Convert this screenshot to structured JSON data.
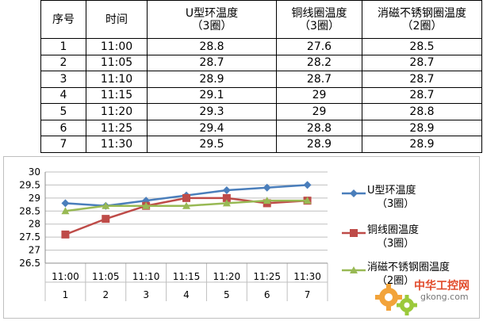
{
  "table": {
    "headers": [
      [
        "序号"
      ],
      [
        "时间"
      ],
      [
        "U型环温度",
        "（3圈）"
      ],
      [
        "铜线圈温度",
        "（3圈）"
      ],
      [
        "消磁不锈钢圈温度",
        "（2圈）"
      ]
    ],
    "rows": [
      [
        "1",
        "11:00",
        "28.8",
        "27.6",
        "28.5"
      ],
      [
        "2",
        "11:05",
        "28.7",
        "28.2",
        "28.7"
      ],
      [
        "3",
        "11:10",
        "28.9",
        "28.7",
        "28.7"
      ],
      [
        "4",
        "11:15",
        "29.1",
        "29",
        "28.7"
      ],
      [
        "5",
        "11:20",
        "29.3",
        "29",
        "28.8"
      ],
      [
        "6",
        "11:25",
        "29.4",
        "28.8",
        "28.9"
      ],
      [
        "7",
        "11:30",
        "29.5",
        "28.9",
        "28.9"
      ]
    ]
  },
  "chart_data": {
    "type": "line",
    "x": [
      "11:00",
      "11:05",
      "11:10",
      "11:15",
      "11:20",
      "11:25",
      "11:30"
    ],
    "x_sub": [
      "1",
      "2",
      "3",
      "4",
      "5",
      "6",
      "7"
    ],
    "ylim": [
      26.5,
      30
    ],
    "yticks": [
      "26.5",
      "27",
      "27.5",
      "28",
      "28.5",
      "29",
      "29.5",
      "30"
    ],
    "grid": true,
    "legend_position": "right",
    "series": [
      {
        "name": "U型环温度（3圈）",
        "legend_lines": [
          "U型环温度",
          "（3圈）"
        ],
        "color": "#4a7ebb",
        "marker": "diamond",
        "values": [
          28.8,
          28.7,
          28.9,
          29.1,
          29.3,
          29.4,
          29.5
        ]
      },
      {
        "name": "铜线圈温度（3圈）",
        "legend_lines": [
          "铜线圈温度",
          "（3圈）"
        ],
        "color": "#be4b48",
        "marker": "square",
        "values": [
          27.6,
          28.2,
          28.7,
          29,
          29,
          28.8,
          28.9
        ]
      },
      {
        "name": "消磁不锈钢圈温度（2圈）",
        "legend_lines": [
          "消磁不锈钢圈温度",
          "（2圈）"
        ],
        "color": "#98b954",
        "marker": "triangle",
        "values": [
          28.5,
          28.7,
          28.7,
          28.7,
          28.8,
          28.9,
          28.9
        ]
      }
    ]
  },
  "watermark": {
    "text": "中华工控网",
    "domain": "gkong.com"
  }
}
